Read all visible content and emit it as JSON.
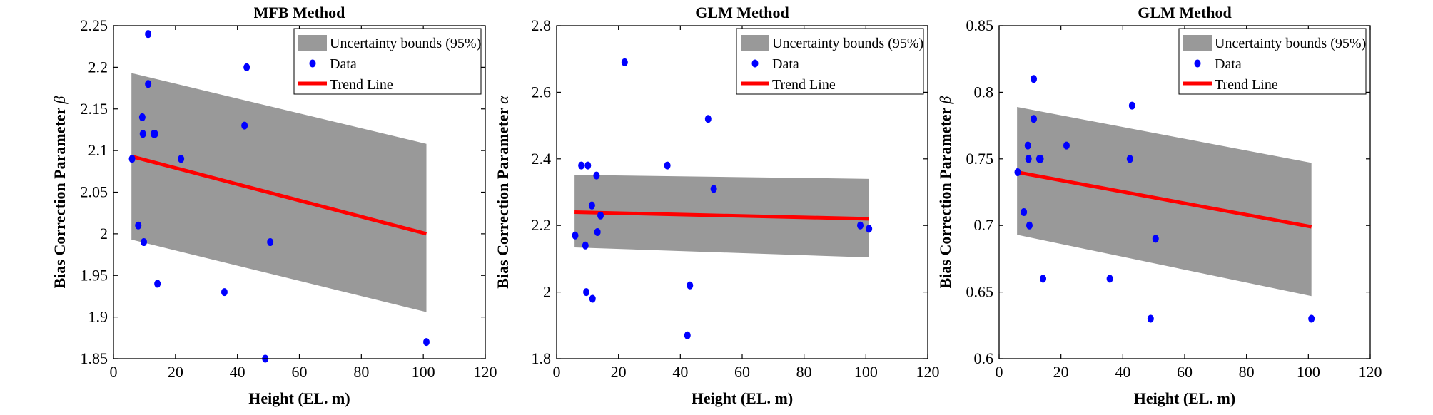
{
  "figure": {
    "colors": {
      "band": "#999999",
      "data": "#0000ff",
      "trend": "#ff0000",
      "axis": "#000000",
      "background": "#ffffff"
    },
    "legend_entries": [
      "Uncertainty bounds (95%)",
      "Data",
      "Trend Line"
    ]
  },
  "chart_data": [
    {
      "type": "scatter",
      "title": "MFB Method",
      "xlabel": "Height (EL. m)",
      "ylabel_text": "Bias Correction Parameter ",
      "ylabel_symbol": "β",
      "xlim": [
        0,
        120
      ],
      "ylim": [
        1.85,
        2.25
      ],
      "xticks": [
        0,
        20,
        40,
        60,
        80,
        100,
        120
      ],
      "yticks": [
        1.85,
        1.9,
        1.95,
        2,
        2.05,
        2.1,
        2.15,
        2.2,
        2.25
      ],
      "xtick_labels": [
        "0",
        "20",
        "40",
        "60",
        "80",
        "100",
        "120"
      ],
      "ytick_labels": [
        "1.85",
        "1.9",
        "1.95",
        "2",
        "2.05",
        "2.1",
        "2.15",
        "2.2",
        "2.25"
      ],
      "grid": false,
      "legend_position": "top-right",
      "legend": [
        "Uncertainty bounds (95%)",
        "Data",
        "Trend Line"
      ],
      "band": {
        "x": [
          5.8,
          101
        ],
        "upper": [
          2.193,
          2.108
        ],
        "lower": [
          1.993,
          1.906
        ]
      },
      "trend": {
        "x": [
          5.8,
          101
        ],
        "y": [
          2.093,
          2.0
        ]
      },
      "points": [
        {
          "x": 6,
          "y": 2.09
        },
        {
          "x": 8,
          "y": 2.01
        },
        {
          "x": 9.3,
          "y": 2.14
        },
        {
          "x": 9.5,
          "y": 2.12
        },
        {
          "x": 9.8,
          "y": 1.99
        },
        {
          "x": 11.2,
          "y": 2.24
        },
        {
          "x": 11.2,
          "y": 2.18
        },
        {
          "x": 13,
          "y": 2.12
        },
        {
          "x": 13.4,
          "y": 2.12
        },
        {
          "x": 14.2,
          "y": 1.94
        },
        {
          "x": 21.8,
          "y": 2.09
        },
        {
          "x": 35.8,
          "y": 1.93
        },
        {
          "x": 42.3,
          "y": 2.13
        },
        {
          "x": 43,
          "y": 2.2
        },
        {
          "x": 49,
          "y": 1.85
        },
        {
          "x": 50.6,
          "y": 1.99
        },
        {
          "x": 101,
          "y": 1.87
        }
      ]
    },
    {
      "type": "scatter",
      "title": "GLM Method",
      "xlabel": "Height (EL. m)",
      "ylabel_text": "Bias Correction Parameter ",
      "ylabel_symbol": "α",
      "xlim": [
        0,
        120
      ],
      "ylim": [
        1.8,
        2.8
      ],
      "xticks": [
        0,
        20,
        40,
        60,
        80,
        100,
        120
      ],
      "yticks": [
        1.8,
        2,
        2.2,
        2.4,
        2.6,
        2.8
      ],
      "xtick_labels": [
        "0",
        "20",
        "40",
        "60",
        "80",
        "100",
        "120"
      ],
      "ytick_labels": [
        "1.8",
        "2",
        "2.2",
        "2.4",
        "2.6",
        "2.8"
      ],
      "grid": false,
      "legend_position": "top-right",
      "legend": [
        "Uncertainty bounds (95%)",
        "Data",
        "Trend Line"
      ],
      "band": {
        "x": [
          5.8,
          101
        ],
        "upper": [
          2.352,
          2.34
        ],
        "lower": [
          2.134,
          2.104
        ]
      },
      "trend": {
        "x": [
          5.8,
          101
        ],
        "y": [
          2.24,
          2.22
        ]
      },
      "points": [
        {
          "x": 6,
          "y": 2.17
        },
        {
          "x": 8,
          "y": 2.38
        },
        {
          "x": 9.3,
          "y": 2.14
        },
        {
          "x": 9.6,
          "y": 2.0
        },
        {
          "x": 10.1,
          "y": 2.38
        },
        {
          "x": 11.4,
          "y": 2.26
        },
        {
          "x": 11.6,
          "y": 1.98
        },
        {
          "x": 12.9,
          "y": 2.35
        },
        {
          "x": 13.2,
          "y": 2.18
        },
        {
          "x": 14.2,
          "y": 2.23
        },
        {
          "x": 22,
          "y": 2.69
        },
        {
          "x": 35.8,
          "y": 2.38
        },
        {
          "x": 42.3,
          "y": 1.87
        },
        {
          "x": 43.1,
          "y": 2.02
        },
        {
          "x": 49,
          "y": 2.52
        },
        {
          "x": 50.8,
          "y": 2.31
        },
        {
          "x": 98.2,
          "y": 2.2
        },
        {
          "x": 101,
          "y": 2.19
        }
      ]
    },
    {
      "type": "scatter",
      "title": "GLM Method",
      "xlabel": "Height (EL. m)",
      "ylabel_text": "Bias Correction Parameter ",
      "ylabel_symbol": "β",
      "xlim": [
        0,
        120
      ],
      "ylim": [
        0.6,
        0.85
      ],
      "xticks": [
        0,
        20,
        40,
        60,
        80,
        100,
        120
      ],
      "yticks": [
        0.6,
        0.65,
        0.7,
        0.75,
        0.8,
        0.85
      ],
      "xtick_labels": [
        "0",
        "20",
        "40",
        "60",
        "80",
        "100",
        "120"
      ],
      "ytick_labels": [
        "0.6",
        "0.65",
        "0.7",
        "0.75",
        "0.8",
        "0.85"
      ],
      "grid": false,
      "legend_position": "top-right",
      "legend": [
        "Uncertainty bounds (95%)",
        "Data",
        "Trend Line"
      ],
      "band": {
        "x": [
          5.8,
          101
        ],
        "upper": [
          0.789,
          0.747
        ],
        "lower": [
          0.693,
          0.647
        ]
      },
      "trend": {
        "x": [
          5.8,
          101
        ],
        "y": [
          0.74,
          0.699
        ]
      },
      "points": [
        {
          "x": 6,
          "y": 0.74
        },
        {
          "x": 8,
          "y": 0.71
        },
        {
          "x": 9.3,
          "y": 0.76
        },
        {
          "x": 9.5,
          "y": 0.75
        },
        {
          "x": 9.8,
          "y": 0.7
        },
        {
          "x": 11.2,
          "y": 0.81
        },
        {
          "x": 11.2,
          "y": 0.78
        },
        {
          "x": 13,
          "y": 0.75
        },
        {
          "x": 13.4,
          "y": 0.75
        },
        {
          "x": 14.2,
          "y": 0.66
        },
        {
          "x": 21.8,
          "y": 0.76
        },
        {
          "x": 35.8,
          "y": 0.66
        },
        {
          "x": 42.3,
          "y": 0.75
        },
        {
          "x": 43,
          "y": 0.79
        },
        {
          "x": 49,
          "y": 0.63
        },
        {
          "x": 50.6,
          "y": 0.69
        },
        {
          "x": 101,
          "y": 0.63
        }
      ]
    }
  ]
}
